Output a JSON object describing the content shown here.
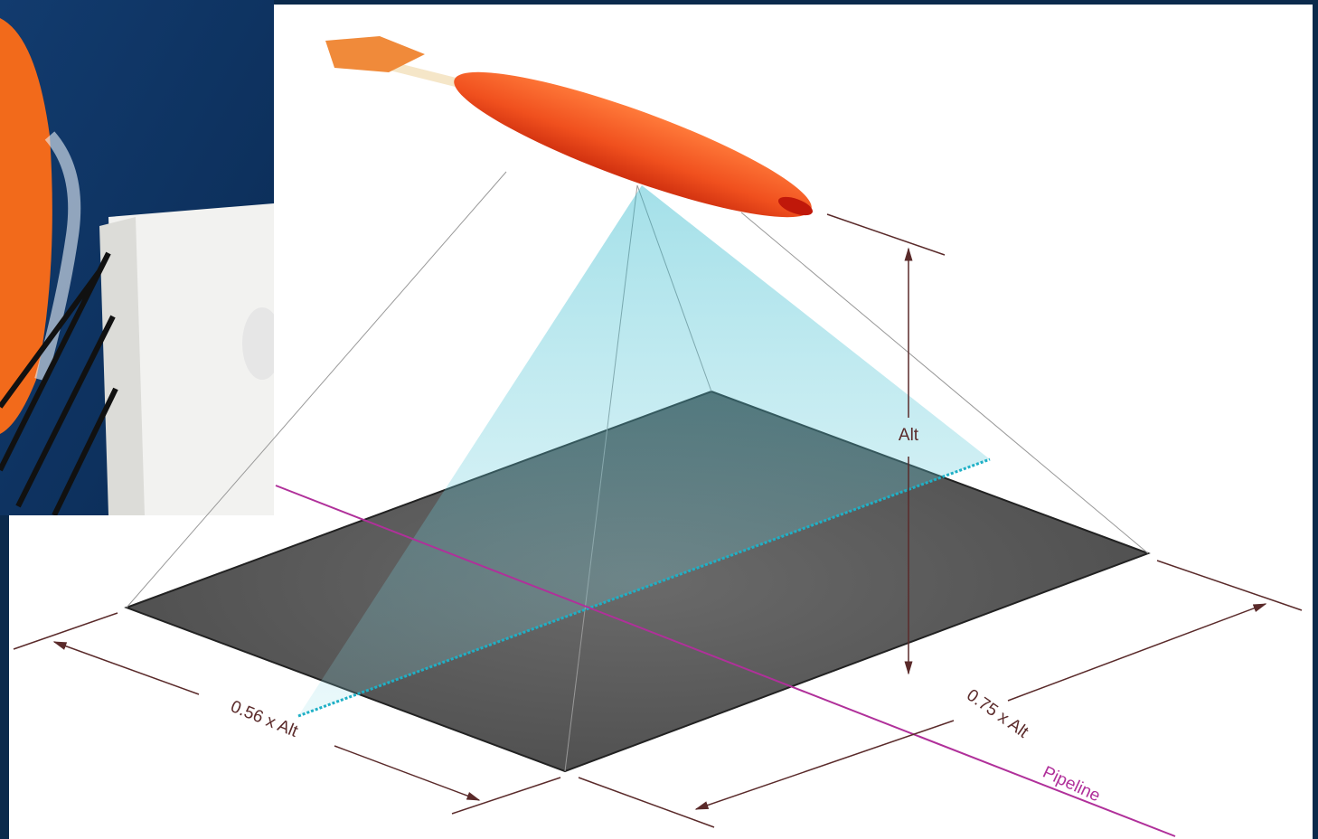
{
  "labels": {
    "altitude": "Alt",
    "across_track": "0.56 x Alt",
    "along_track": "0.75 x Alt",
    "pipeline": "Pipeline"
  }
}
